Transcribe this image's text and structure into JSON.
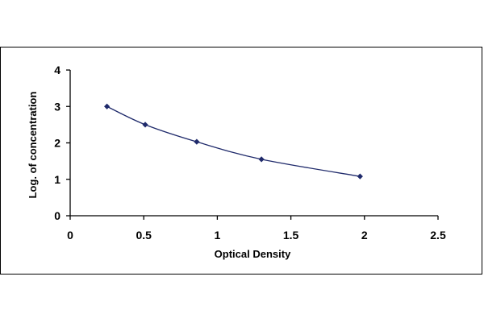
{
  "chart_data": {
    "type": "line",
    "title": "",
    "xlabel": "Optical Density",
    "ylabel": "Log. of concentration",
    "xlim": [
      0,
      2.5
    ],
    "ylim": [
      0,
      4
    ],
    "xticks": [
      "0",
      "0.5",
      "1",
      "1.5",
      "2",
      "2.5"
    ],
    "yticks": [
      "0",
      "1",
      "2",
      "3",
      "4"
    ],
    "grid": false,
    "legend": "none",
    "series": [
      {
        "x": [
          0.25,
          0.51,
          0.86,
          1.3,
          1.97
        ],
        "y": [
          3.0,
          2.5,
          2.03,
          1.55,
          1.08
        ],
        "marker": "diamond",
        "smooth": true,
        "color": "#1f2a6b"
      }
    ]
  }
}
